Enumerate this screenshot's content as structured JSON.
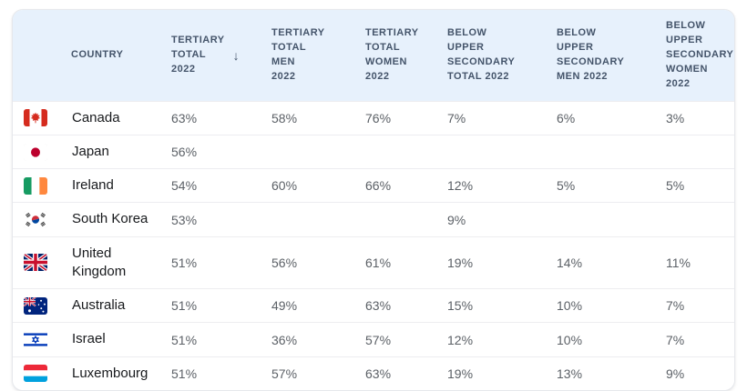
{
  "page": {
    "background": "#ffffff"
  },
  "table": {
    "header": {
      "sort_icon": "↓",
      "columns": [
        {
          "id": "country",
          "label": "COUNTRY",
          "sorted": false
        },
        {
          "id": "tertiary-total-2022",
          "label": "TERTIARY\nTOTAL\n2022",
          "sorted": true
        },
        {
          "id": "tertiary-total-men-2022",
          "label": "TERTIARY\nTOTAL\nMEN\n2022",
          "sorted": false
        },
        {
          "id": "tertiary-total-women-2022",
          "label": "TERTIARY\nTOTAL\nWOMEN\n2022",
          "sorted": false
        },
        {
          "id": "below-upper-secondary-total-2022",
          "label": "BELOW\nUPPER\nSECONDARY\nTOTAL 2022",
          "sorted": false
        },
        {
          "id": "below-upper-secondary-men-2022",
          "label": "BELOW\nUPPER\nSECONDARY\nMEN 2022",
          "sorted": false
        },
        {
          "id": "below-upper-secondary-women-2022",
          "label": "BELOW\nUPPER\nSECONDARY\nWOMEN\n2022",
          "sorted": false
        }
      ]
    },
    "rows": [
      {
        "country": "Canada",
        "flag": "canada",
        "values": [
          "63%",
          "58%",
          "76%",
          "7%",
          "6%",
          "3%"
        ]
      },
      {
        "country": "Japan",
        "flag": "japan",
        "values": [
          "56%",
          "",
          "",
          "",
          "",
          ""
        ]
      },
      {
        "country": "Ireland",
        "flag": "ireland",
        "values": [
          "54%",
          "60%",
          "66%",
          "12%",
          "5%",
          "5%"
        ]
      },
      {
        "country": "South Korea",
        "flag": "south-korea",
        "values": [
          "53%",
          "",
          "",
          "9%",
          "",
          ""
        ]
      },
      {
        "country": "United Kingdom",
        "flag": "united-kingdom",
        "values": [
          "51%",
          "56%",
          "61%",
          "19%",
          "14%",
          "11%"
        ]
      },
      {
        "country": "Australia",
        "flag": "australia",
        "values": [
          "51%",
          "49%",
          "63%",
          "15%",
          "10%",
          "7%"
        ]
      },
      {
        "country": "Israel",
        "flag": "israel",
        "values": [
          "51%",
          "36%",
          "57%",
          "12%",
          "10%",
          "7%"
        ]
      },
      {
        "country": "Luxembourg",
        "flag": "luxembourg",
        "values": [
          "51%",
          "57%",
          "63%",
          "19%",
          "13%",
          "9%"
        ]
      }
    ]
  },
  "chart_data": {
    "type": "table",
    "columns": [
      "COUNTRY",
      "TERTIARY TOTAL 2022",
      "TERTIARY TOTAL MEN 2022",
      "TERTIARY TOTAL WOMEN 2022",
      "BELOW UPPER SECONDARY TOTAL 2022",
      "BELOW UPPER SECONDARY MEN 2022",
      "BELOW UPPER SECONDARY WOMEN 2022"
    ],
    "rows": [
      [
        "Canada",
        "63%",
        "58%",
        "76%",
        "7%",
        "6%",
        "3%"
      ],
      [
        "Japan",
        "56%",
        "",
        "",
        "",
        "",
        ""
      ],
      [
        "Ireland",
        "54%",
        "60%",
        "66%",
        "12%",
        "5%",
        "5%"
      ],
      [
        "South Korea",
        "53%",
        "",
        "",
        "9%",
        "",
        ""
      ],
      [
        "United Kingdom",
        "51%",
        "56%",
        "61%",
        "19%",
        "14%",
        "11%"
      ],
      [
        "Australia",
        "51%",
        "49%",
        "63%",
        "15%",
        "10%",
        "7%"
      ],
      [
        "Israel",
        "51%",
        "36%",
        "57%",
        "12%",
        "10%",
        "7%"
      ],
      [
        "Luxembourg",
        "51%",
        "57%",
        "63%",
        "19%",
        "13%",
        "9%"
      ]
    ],
    "sorted_by": "TERTIARY TOTAL 2022",
    "sort_direction": "descending"
  },
  "colors": {
    "header_bg": "#e7f1fc",
    "header_text": "#44546a",
    "country_text": "#17191c",
    "value_text": "#5c6167",
    "row_border": "#ededf0",
    "card_border": "#e6e8ec"
  }
}
